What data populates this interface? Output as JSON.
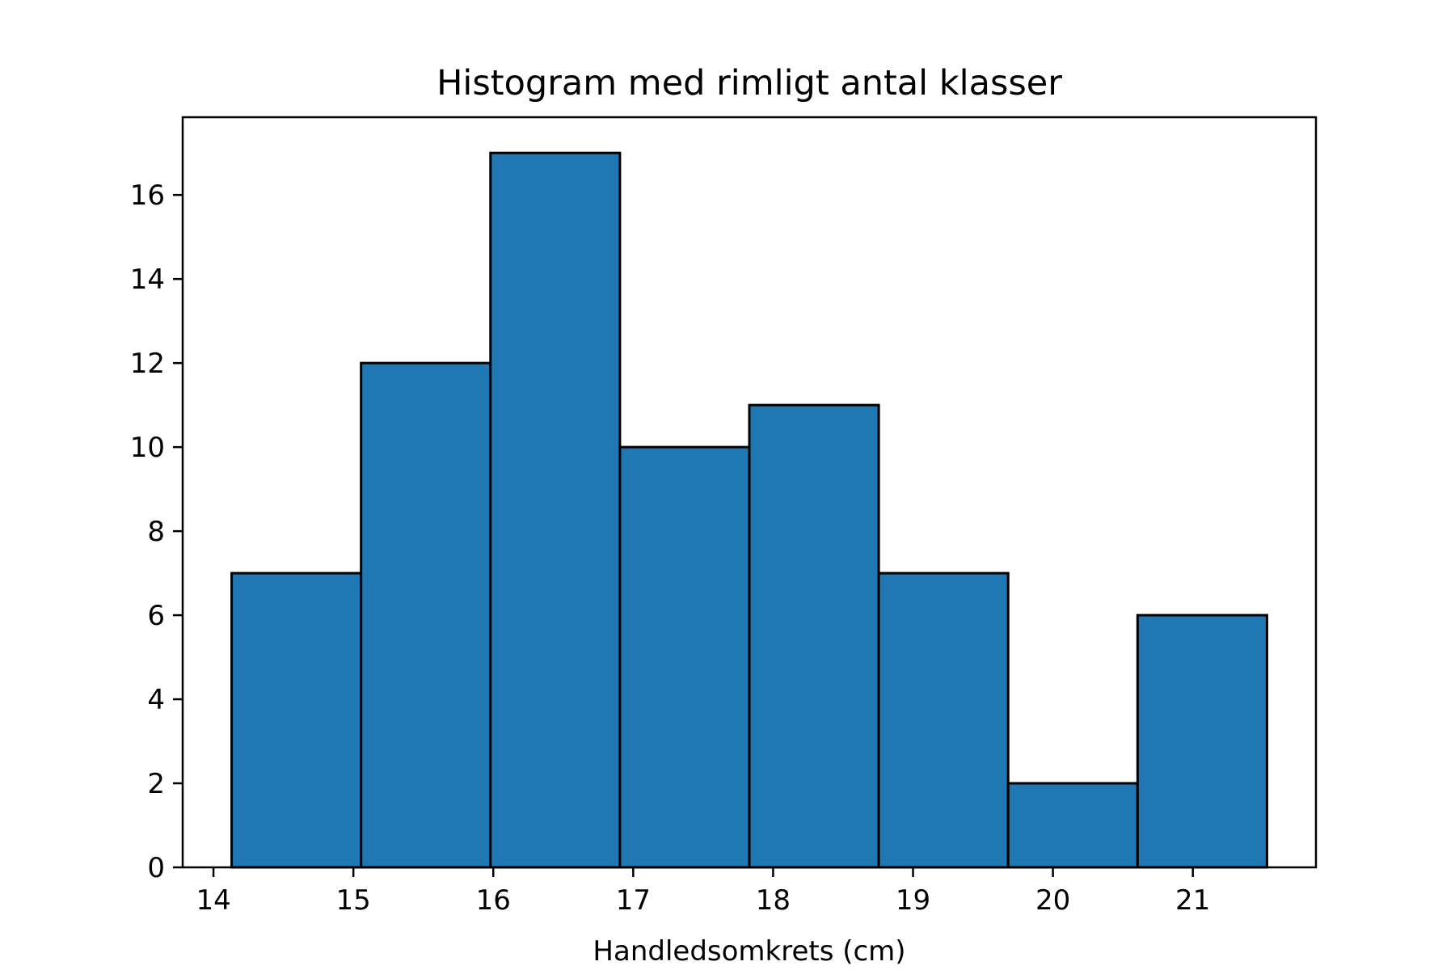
{
  "chart_data": {
    "type": "bar",
    "subtype": "histogram",
    "title": "Histogram med rimligt antal klasser",
    "xlabel": "Handledsomkrets (cm)",
    "ylabel": "",
    "bins": [
      {
        "start": 14.13,
        "end": 15.055,
        "count": 7
      },
      {
        "start": 15.055,
        "end": 15.98,
        "count": 12
      },
      {
        "start": 15.98,
        "end": 16.905,
        "count": 17
      },
      {
        "start": 16.905,
        "end": 17.83,
        "count": 10
      },
      {
        "start": 17.83,
        "end": 18.755,
        "count": 11
      },
      {
        "start": 18.755,
        "end": 19.68,
        "count": 7
      },
      {
        "start": 19.68,
        "end": 20.605,
        "count": 2
      },
      {
        "start": 20.605,
        "end": 21.53,
        "count": 6
      }
    ],
    "xlim": [
      13.78,
      21.88
    ],
    "ylim": [
      0,
      17.85
    ],
    "xticks": [
      14,
      15,
      16,
      17,
      18,
      19,
      20,
      21
    ],
    "yticks": [
      0,
      2,
      4,
      6,
      8,
      10,
      12,
      14,
      16
    ],
    "bar_color": "#1f77b4",
    "edge_color": "#000000",
    "grid": false,
    "legend": "none"
  }
}
